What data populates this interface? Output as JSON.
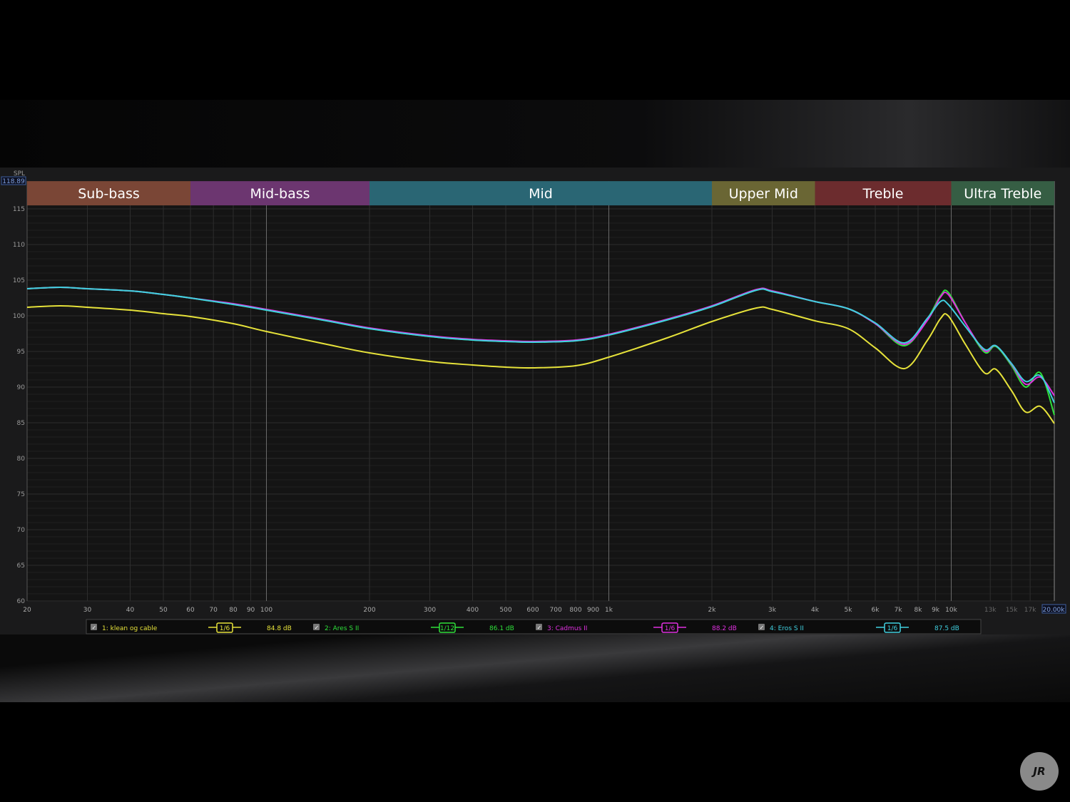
{
  "chart_data": {
    "type": "line",
    "ylabel": "SPL",
    "cursor_spl": "118.89",
    "cursor_freq": "20.00k",
    "x_scale": "log",
    "xlim": [
      20,
      20000
    ],
    "ylim": [
      60,
      118.89
    ],
    "grid": true,
    "x_ticks": [
      "20",
      "30",
      "40",
      "50",
      "60",
      "70",
      "80",
      "90",
      "100",
      "200",
      "300",
      "400",
      "500",
      "600",
      "700",
      "800",
      "900",
      "1k",
      "2k",
      "3k",
      "4k",
      "5k",
      "6k",
      "7k",
      "8k",
      "9k",
      "10k",
      "13k",
      "15k",
      "17k"
    ],
    "x_tick_values": [
      20,
      30,
      40,
      50,
      60,
      70,
      80,
      90,
      100,
      200,
      300,
      400,
      500,
      600,
      700,
      800,
      900,
      1000,
      2000,
      3000,
      4000,
      5000,
      6000,
      7000,
      8000,
      9000,
      10000,
      13000,
      15000,
      17000
    ],
    "y_ticks": [
      60,
      65,
      70,
      75,
      80,
      85,
      90,
      95,
      100,
      105,
      110,
      115
    ],
    "bands": [
      {
        "label": "Sub-bass",
        "from": 20,
        "to": 60,
        "color": "#7a4636"
      },
      {
        "label": "Mid-bass",
        "from": 60,
        "to": 200,
        "color": "#6c3670"
      },
      {
        "label": "Mid",
        "from": 200,
        "to": 2000,
        "color": "#2a6674"
      },
      {
        "label": "Upper Mid",
        "from": 2000,
        "to": 4000,
        "color": "#6a6634"
      },
      {
        "label": "Treble",
        "from": 4000,
        "to": 10000,
        "color": "#6c2c2e"
      },
      {
        "label": "Ultra Treble",
        "from": 10000,
        "to": 20000,
        "color": "#365e44"
      }
    ],
    "x": [
      20,
      25,
      30,
      40,
      50,
      60,
      80,
      100,
      150,
      200,
      300,
      400,
      500,
      600,
      800,
      1000,
      1500,
      2000,
      2700,
      3000,
      4000,
      5000,
      6000,
      7300,
      8500,
      9300,
      9800,
      11000,
      12500,
      13500,
      15000,
      16500,
      18200,
      20000
    ],
    "series": [
      {
        "name": "1: klean og cable",
        "smoothing": "1/6",
        "level": "84.8 dB",
        "color": "#e6e23a",
        "values": [
          101.2,
          101.4,
          101.2,
          100.8,
          100.3,
          99.9,
          98.9,
          97.8,
          96.0,
          94.8,
          93.6,
          93.1,
          92.8,
          92.7,
          93.0,
          94.2,
          97.0,
          99.2,
          101.1,
          100.9,
          99.3,
          98.2,
          95.5,
          92.6,
          96.5,
          99.6,
          100.0,
          96.0,
          92.0,
          92.5,
          89.5,
          86.5,
          87.3,
          84.9
        ]
      },
      {
        "name": "2: Ares S II",
        "smoothing": "1/12",
        "level": "86.1 dB",
        "color": "#2ee03a",
        "values": [
          103.8,
          104.0,
          103.8,
          103.5,
          103.0,
          102.5,
          101.6,
          100.8,
          99.3,
          98.2,
          97.1,
          96.6,
          96.4,
          96.3,
          96.5,
          97.3,
          99.5,
          101.3,
          103.6,
          103.4,
          102.0,
          101.0,
          98.9,
          95.8,
          99.5,
          102.8,
          103.3,
          99.0,
          94.9,
          95.7,
          93.0,
          90.0,
          92.0,
          86.1
        ]
      },
      {
        "name": "3: Cadmus II",
        "smoothing": "1/6",
        "level": "88.2 dB",
        "color": "#e030e0",
        "values": [
          103.8,
          104.0,
          103.8,
          103.5,
          103.0,
          102.5,
          101.7,
          100.9,
          99.4,
          98.3,
          97.2,
          96.7,
          96.5,
          96.4,
          96.6,
          97.4,
          99.6,
          101.4,
          103.7,
          103.5,
          102.0,
          101.0,
          98.9,
          96.0,
          99.3,
          102.6,
          103.0,
          99.0,
          95.1,
          95.8,
          93.2,
          90.4,
          91.4,
          88.8
        ]
      },
      {
        "name": "4: Eros S II",
        "smoothing": "1/6",
        "level": "87.5 dB",
        "color": "#40d0e0",
        "values": [
          103.8,
          104.0,
          103.8,
          103.5,
          103.0,
          102.5,
          101.6,
          100.8,
          99.3,
          98.2,
          97.1,
          96.6,
          96.4,
          96.3,
          96.5,
          97.3,
          99.5,
          101.3,
          103.6,
          103.4,
          102.0,
          101.0,
          99.0,
          96.2,
          99.6,
          102.0,
          101.6,
          98.5,
          95.3,
          95.8,
          93.3,
          90.8,
          91.6,
          87.8
        ]
      }
    ]
  }
}
